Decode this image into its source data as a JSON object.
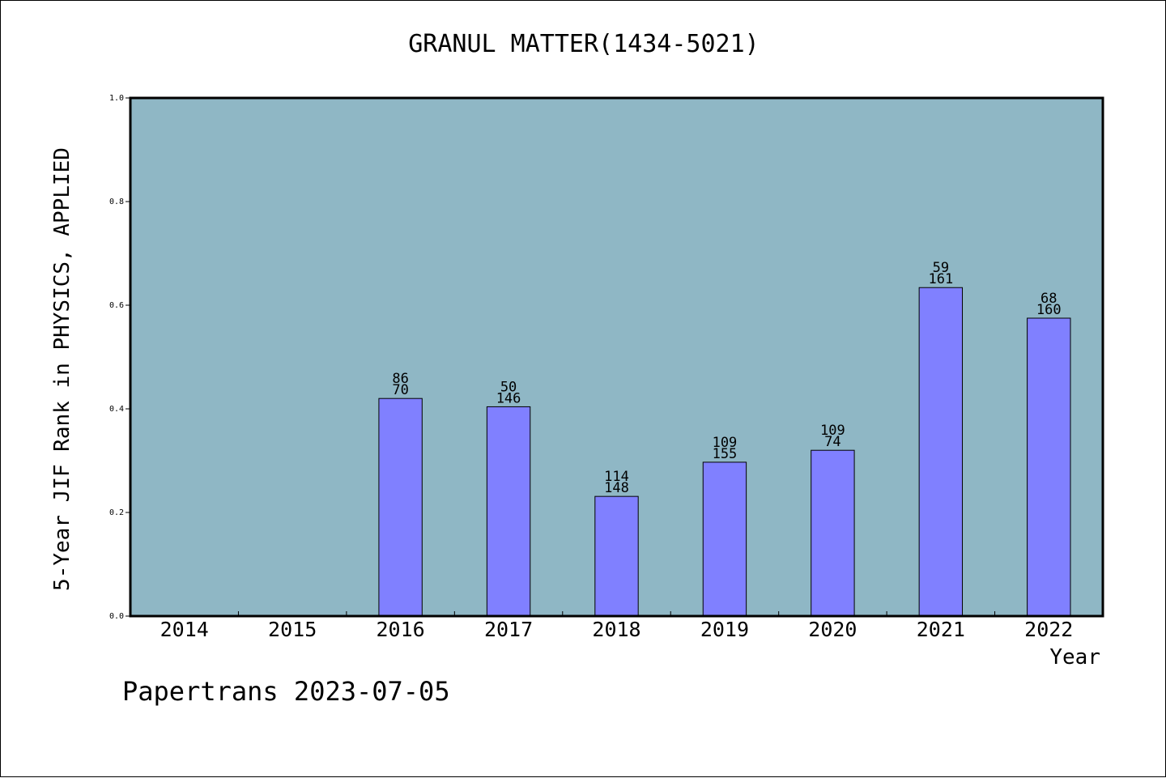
{
  "chart_data": {
    "type": "bar",
    "title": "GRANUL MATTER(1434-5021)",
    "xlabel": "Year",
    "ylabel": "5-Year JIF Rank in PHYSICS, APPLIED",
    "categories": [
      "2014",
      "2015",
      "2016",
      "2017",
      "2018",
      "2019",
      "2020",
      "2021",
      "2022"
    ],
    "values": [
      null,
      null,
      0.42,
      0.404,
      0.231,
      0.297,
      0.32,
      0.634,
      0.575
    ],
    "labels_top": [
      "",
      "",
      "86",
      "50",
      "114",
      "109",
      "109",
      "59",
      "68"
    ],
    "labels_bottom": [
      "",
      "",
      "70",
      "146",
      "148",
      "155",
      "74",
      "161",
      "160"
    ],
    "ylim": [
      0,
      1
    ],
    "yticks": [
      0.0,
      0.2,
      0.4,
      0.6,
      0.8,
      1.0
    ],
    "ytick_labels": [
      "0.0",
      "0.2",
      "0.4",
      "0.6",
      "0.8",
      "1.0"
    ],
    "grid": false,
    "colors": {
      "plot_background": "#8fb7c5",
      "bar_fill": "#8080ff",
      "bar_stroke": "#000000"
    }
  },
  "footer": "Papertrans 2023-07-05"
}
